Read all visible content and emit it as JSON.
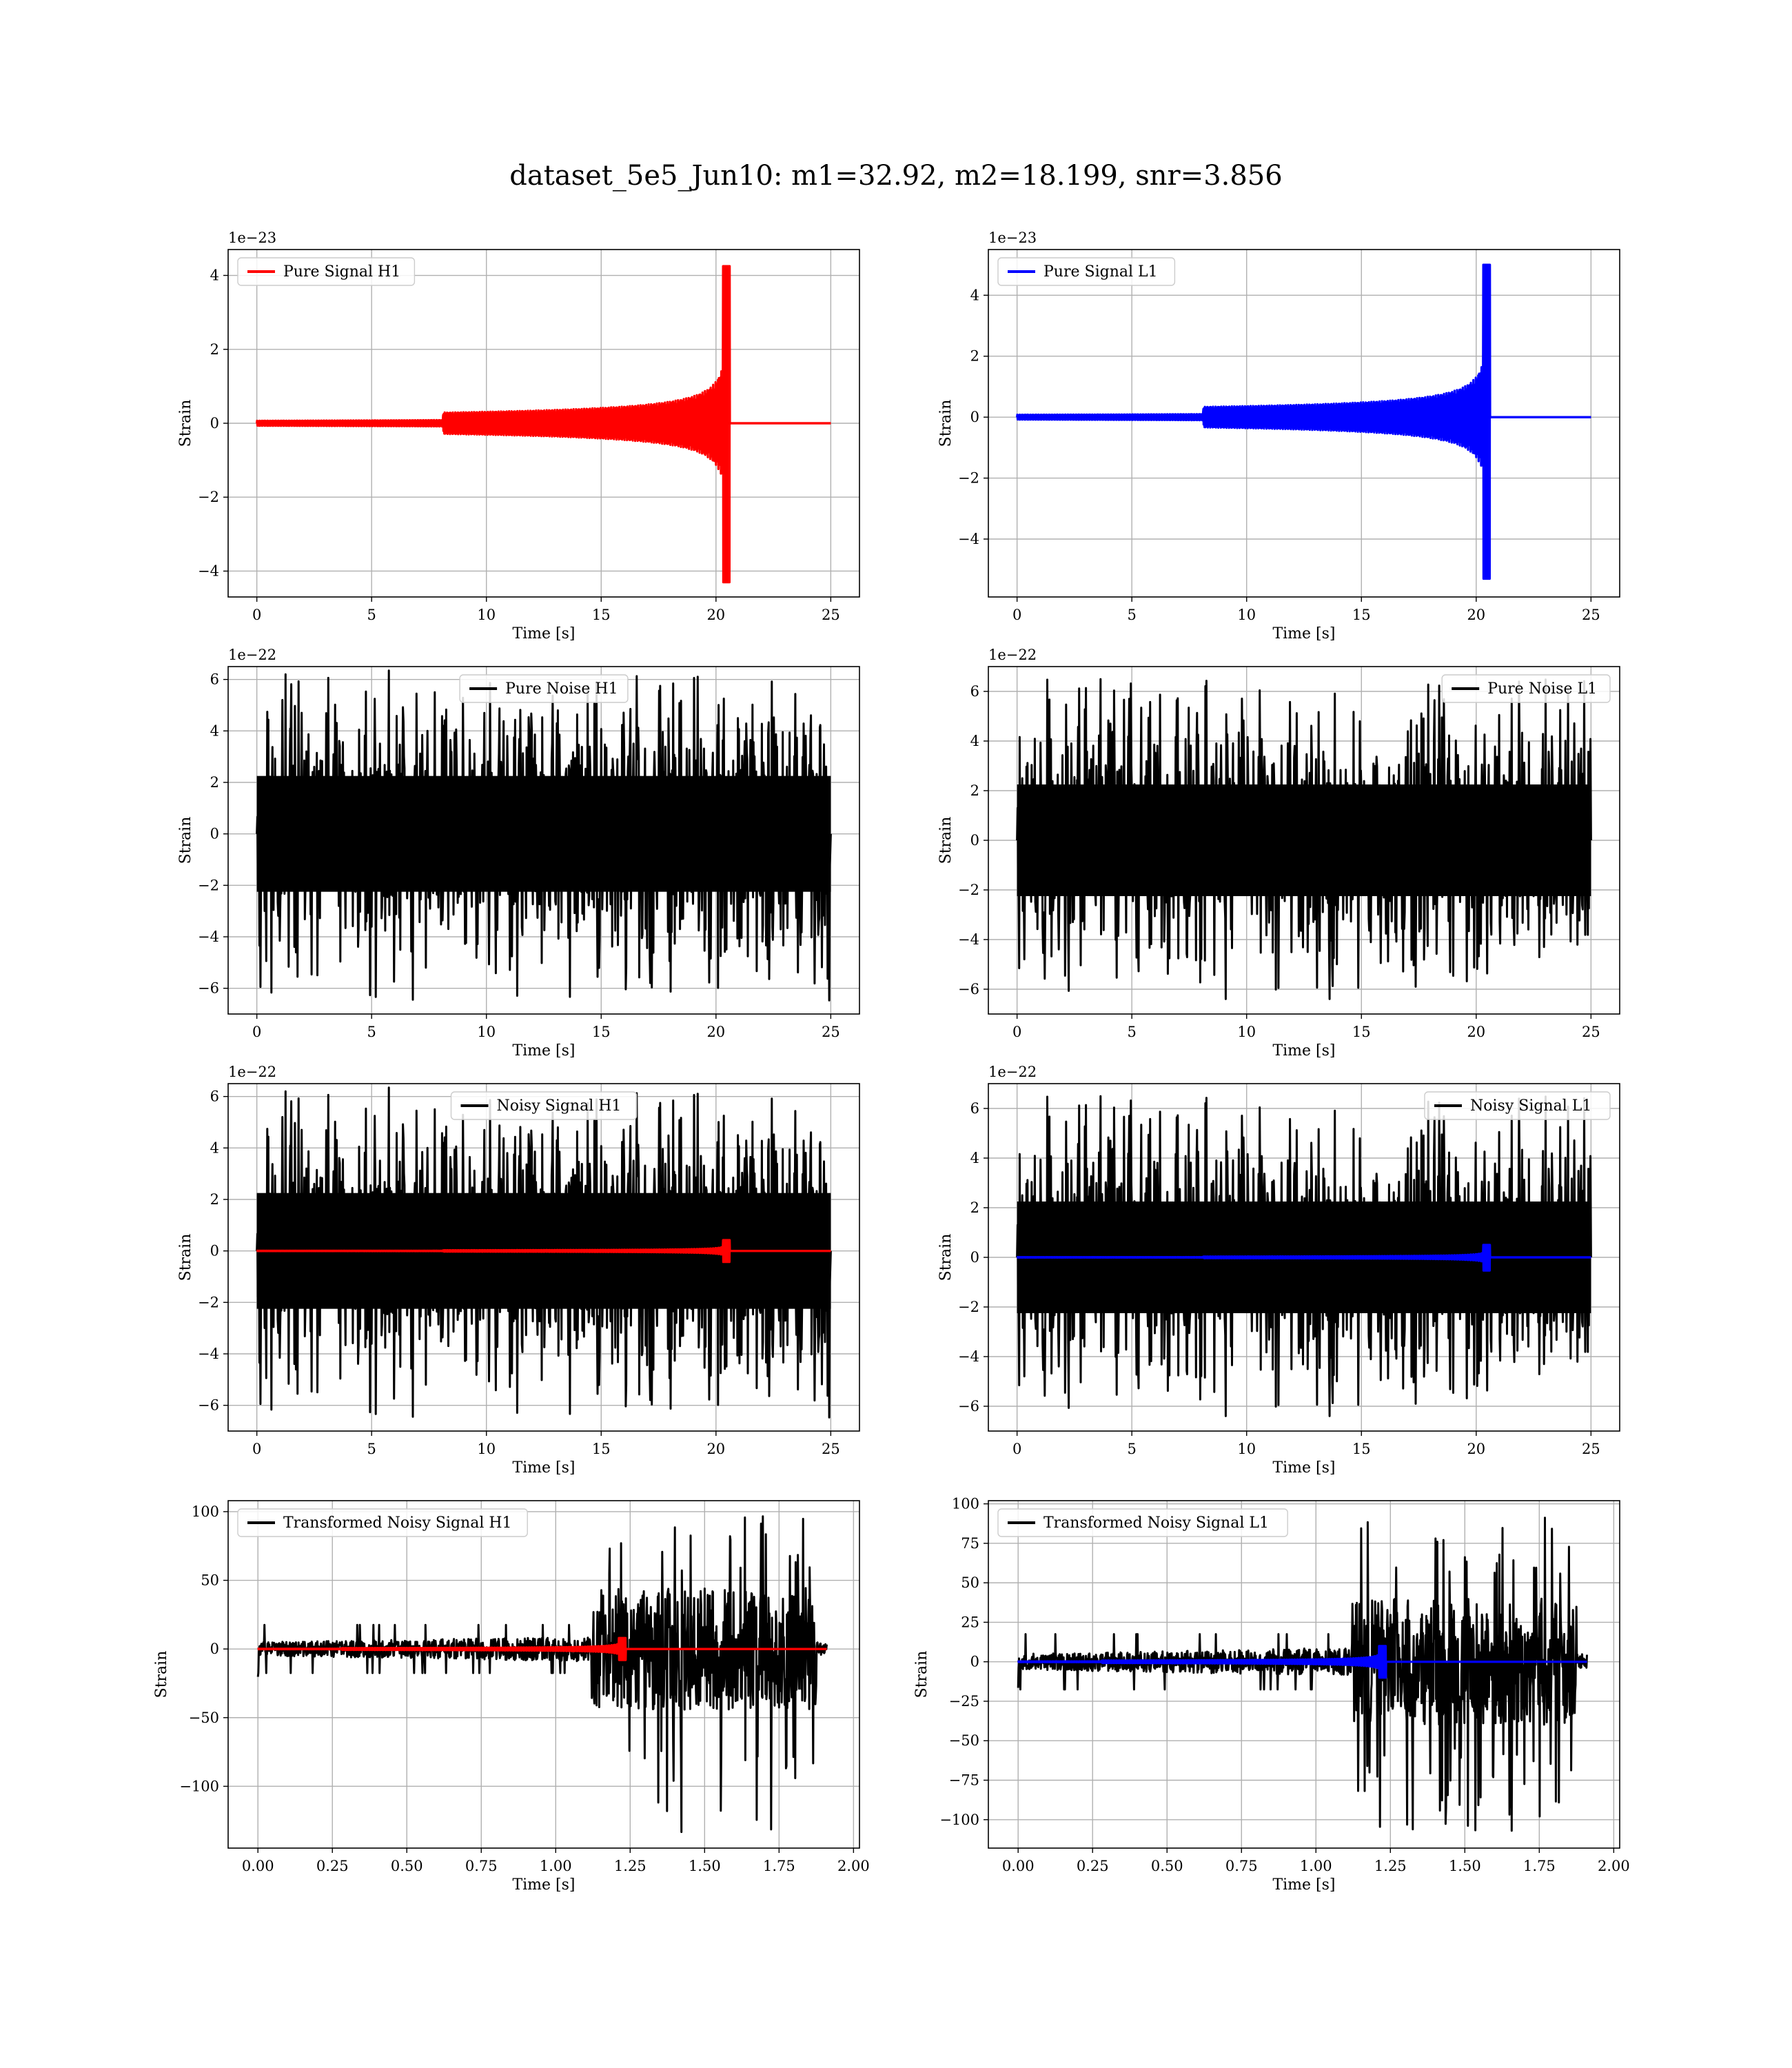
{
  "figure": {
    "title": "dataset_5e5_Jun10: m1=32.92, m2=18.199, snr=3.856"
  },
  "colors": {
    "h1": "#ff0000",
    "l1": "#0000ff",
    "noise": "#000000",
    "grid": "#b0b0b0"
  },
  "chart_data": [
    {
      "type": "line",
      "xlabel": "Time [s]",
      "ylabel": "Strain",
      "offset_text": "1e−23",
      "xlim": [
        -1.25,
        26.25
      ],
      "ylim": [
        -4.7,
        4.7
      ],
      "xticks": [
        0,
        5,
        10,
        15,
        20,
        25
      ],
      "yticks": [
        -4,
        -2,
        0,
        2,
        4
      ],
      "legend": "top-left",
      "series": [
        {
          "name": "Pure Signal H1",
          "color": "#ff0000",
          "kind": "chirp",
          "duration": 25,
          "t_merger": 20.6,
          "peak_pos": 4.25,
          "peak_neg": -4.3,
          "amp_pre": 1.2
        }
      ]
    },
    {
      "type": "line",
      "xlabel": "Time [s]",
      "ylabel": "Strain",
      "offset_text": "1e−23",
      "xlim": [
        -1.25,
        26.25
      ],
      "ylim": [
        -5.9,
        5.5
      ],
      "xticks": [
        0,
        5,
        10,
        15,
        20,
        25
      ],
      "yticks": [
        -4,
        -2,
        0,
        2,
        4
      ],
      "legend": "top-left",
      "series": [
        {
          "name": "Pure Signal L1",
          "color": "#0000ff",
          "kind": "chirp",
          "duration": 25,
          "t_merger": 20.6,
          "peak_pos": 5.0,
          "peak_neg": -5.3,
          "amp_pre": 1.4
        }
      ]
    },
    {
      "type": "line",
      "xlabel": "Time [s]",
      "ylabel": "Strain",
      "offset_text": "1e−22",
      "xlim": [
        -1.25,
        26.25
      ],
      "ylim": [
        -7.0,
        6.5
      ],
      "xticks": [
        0,
        5,
        10,
        15,
        20,
        25
      ],
      "yticks": [
        -6,
        -4,
        -2,
        0,
        2,
        4,
        6
      ],
      "legend": "top-center",
      "series": [
        {
          "name": "Pure Noise H1",
          "color": "#000000",
          "kind": "noise",
          "duration": 25,
          "band": 3.0,
          "spike_max": 6.2,
          "spike_min": -6.5,
          "seed": 11
        }
      ]
    },
    {
      "type": "line",
      "xlabel": "Time [s]",
      "ylabel": "Strain",
      "offset_text": "1e−22",
      "xlim": [
        -1.25,
        26.25
      ],
      "ylim": [
        -7.0,
        7.0
      ],
      "xticks": [
        0,
        5,
        10,
        15,
        20,
        25
      ],
      "yticks": [
        -6,
        -4,
        -2,
        0,
        2,
        4,
        6
      ],
      "legend": "top-right",
      "series": [
        {
          "name": "Pure Noise L1",
          "color": "#000000",
          "kind": "noise",
          "duration": 25,
          "band": 3.0,
          "spike_max": 6.5,
          "spike_min": -6.4,
          "seed": 23
        }
      ]
    },
    {
      "type": "line",
      "xlabel": "Time [s]",
      "ylabel": "Strain",
      "offset_text": "1e−22",
      "xlim": [
        -1.25,
        26.25
      ],
      "ylim": [
        -7.0,
        6.5
      ],
      "xticks": [
        0,
        5,
        10,
        15,
        20,
        25
      ],
      "yticks": [
        -6,
        -4,
        -2,
        0,
        2,
        4,
        6
      ],
      "legend": "top-center",
      "series": [
        {
          "name": "Noisy Signal H1",
          "color": "#000000",
          "kind": "noise",
          "duration": 25,
          "band": 3.0,
          "spike_max": 6.2,
          "spike_min": -6.5,
          "seed": 11
        },
        {
          "name": "",
          "color": "#ff0000",
          "kind": "chirp",
          "duration": 25,
          "t_merger": 20.6,
          "peak_pos": 0.42,
          "peak_neg": -0.43,
          "amp_pre": 0.12
        }
      ]
    },
    {
      "type": "line",
      "xlabel": "Time [s]",
      "ylabel": "Strain",
      "offset_text": "1e−22",
      "xlim": [
        -1.25,
        26.25
      ],
      "ylim": [
        -7.0,
        7.0
      ],
      "xticks": [
        0,
        5,
        10,
        15,
        20,
        25
      ],
      "yticks": [
        -6,
        -4,
        -2,
        0,
        2,
        4,
        6
      ],
      "legend": "top-right",
      "series": [
        {
          "name": "Noisy Signal L1",
          "color": "#000000",
          "kind": "noise",
          "duration": 25,
          "band": 3.0,
          "spike_max": 6.5,
          "spike_min": -6.4,
          "seed": 23
        },
        {
          "name": "",
          "color": "#0000ff",
          "kind": "chirp",
          "duration": 25,
          "t_merger": 20.6,
          "peak_pos": 0.5,
          "peak_neg": -0.53,
          "amp_pre": 0.14
        }
      ]
    },
    {
      "type": "line",
      "xlabel": "Time [s]",
      "ylabel": "Strain",
      "offset_text": "",
      "xlim": [
        -0.1,
        2.02
      ],
      "ylim": [
        -145,
        108
      ],
      "xticks": [
        0.0,
        0.25,
        0.5,
        0.75,
        1.0,
        1.25,
        1.5,
        1.75,
        2.0
      ],
      "xtick_labels": [
        "0.00",
        "0.25",
        "0.50",
        "0.75",
        "1.00",
        "1.25",
        "1.50",
        "1.75",
        "2.00"
      ],
      "yticks": [
        -100,
        -50,
        0,
        50,
        100
      ],
      "legend": "top-left",
      "series": [
        {
          "name": "Transformed Noisy Signal H1",
          "color": "#000000",
          "kind": "tnoise",
          "duration": 1.91,
          "t_jump": 1.12,
          "t_end": 1.875,
          "amp_lo": 5,
          "amp_hi": 45,
          "spike_max": 98,
          "spike_min": -135,
          "seed": 37
        },
        {
          "name": "",
          "color": "#ff0000",
          "kind": "chirp",
          "duration": 1.91,
          "t_merger": 1.235,
          "peak_pos": 8,
          "peak_neg": -8,
          "amp_pre": 3
        }
      ]
    },
    {
      "type": "line",
      "xlabel": "Time [s]",
      "ylabel": "Strain",
      "offset_text": "",
      "xlim": [
        -0.1,
        2.02
      ],
      "ylim": [
        -118,
        102
      ],
      "xticks": [
        0.0,
        0.25,
        0.5,
        0.75,
        1.0,
        1.25,
        1.5,
        1.75,
        2.0
      ],
      "xtick_labels": [
        "0.00",
        "0.25",
        "0.50",
        "0.75",
        "1.00",
        "1.25",
        "1.50",
        "1.75",
        "2.00"
      ],
      "yticks": [
        -100,
        -75,
        -50,
        -25,
        0,
        25,
        50,
        75,
        100
      ],
      "legend": "top-left",
      "series": [
        {
          "name": "Transformed Noisy Signal L1",
          "color": "#000000",
          "kind": "tnoise",
          "duration": 1.91,
          "t_jump": 1.12,
          "t_end": 1.875,
          "amp_lo": 5,
          "amp_hi": 40,
          "spike_max": 92,
          "spike_min": -110,
          "seed": 53
        },
        {
          "name": "",
          "color": "#0000ff",
          "kind": "chirp",
          "duration": 1.91,
          "t_merger": 1.235,
          "peak_pos": 10,
          "peak_neg": -10,
          "amp_pre": 3.5
        }
      ]
    }
  ]
}
